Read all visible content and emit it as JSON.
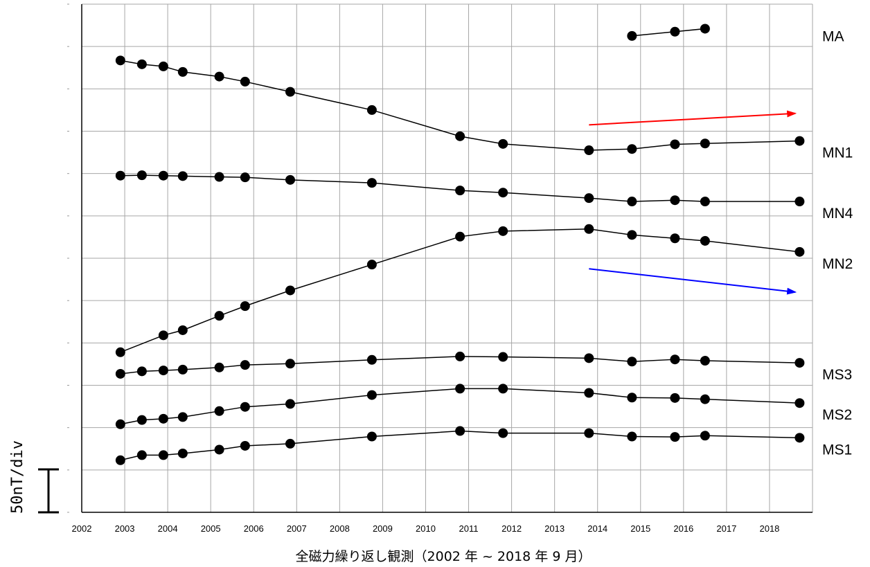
{
  "chart_data": {
    "type": "line",
    "xlabel": "全磁力繰り返し観測（2002 年 ~ 2018 年 9 月）",
    "ylabel": "",
    "xlim": [
      2002,
      2019
    ],
    "ylim": [
      0,
      12
    ],
    "x_ticks": [
      "2002",
      "2003",
      "2004",
      "2005",
      "2006",
      "2007",
      "2008",
      "2009",
      "2010",
      "2011",
      "2012",
      "2013",
      "2014",
      "2015",
      "2016",
      "2017",
      "2018"
    ],
    "y_grid_step": 1,
    "grid": true,
    "scale_label": "50nT/div",
    "series": [
      {
        "name": "MA",
        "x": [
          2014.8,
          2015.8,
          2016.5
        ],
        "y": [
          11.25,
          11.35,
          11.42
        ]
      },
      {
        "name": "MN1",
        "x": [
          2002.9,
          2003.4,
          2003.9,
          2004.35,
          2005.2,
          2005.8,
          2006.85,
          2008.75,
          2010.8,
          2011.8,
          2013.8,
          2014.8,
          2015.8,
          2016.5,
          2018.7
        ],
        "y": [
          10.67,
          10.58,
          10.53,
          10.4,
          10.29,
          10.17,
          9.93,
          9.5,
          8.88,
          8.7,
          8.55,
          8.58,
          8.69,
          8.71,
          8.77
        ]
      },
      {
        "name": "MN4",
        "x": [
          2002.9,
          2003.4,
          2003.9,
          2004.35,
          2005.2,
          2005.8,
          2006.85,
          2008.75,
          2010.8,
          2011.8,
          2013.8,
          2014.8,
          2015.8,
          2016.5,
          2018.7
        ],
        "y": [
          7.95,
          7.96,
          7.95,
          7.94,
          7.92,
          7.91,
          7.85,
          7.78,
          7.6,
          7.55,
          7.42,
          7.34,
          7.37,
          7.34,
          7.34
        ]
      },
      {
        "name": "MN2",
        "x": [
          2002.9,
          2003.9,
          2004.35,
          2005.2,
          2005.8,
          2006.85,
          2008.75,
          2010.8,
          2011.8,
          2013.8,
          2014.8,
          2015.8,
          2016.5,
          2018.7
        ],
        "y": [
          3.78,
          4.18,
          4.3,
          4.64,
          4.87,
          5.24,
          5.85,
          6.51,
          6.64,
          6.69,
          6.55,
          6.47,
          6.41,
          6.15
        ]
      },
      {
        "name": "MS3",
        "x": [
          2002.9,
          2003.4,
          2003.9,
          2004.35,
          2005.2,
          2005.8,
          2006.85,
          2008.75,
          2010.8,
          2011.8,
          2013.8,
          2014.8,
          2015.8,
          2016.5,
          2018.7
        ],
        "y": [
          3.27,
          3.33,
          3.35,
          3.37,
          3.42,
          3.48,
          3.51,
          3.6,
          3.68,
          3.67,
          3.64,
          3.56,
          3.61,
          3.58,
          3.53
        ]
      },
      {
        "name": "MS2",
        "x": [
          2002.9,
          2003.4,
          2003.9,
          2004.35,
          2005.2,
          2005.8,
          2006.85,
          2008.75,
          2010.8,
          2011.8,
          2013.8,
          2014.8,
          2015.8,
          2016.5,
          2018.7
        ],
        "y": [
          2.08,
          2.18,
          2.21,
          2.25,
          2.39,
          2.49,
          2.56,
          2.77,
          2.92,
          2.92,
          2.82,
          2.71,
          2.7,
          2.67,
          2.58
        ]
      },
      {
        "name": "MS1",
        "x": [
          2002.9,
          2003.4,
          2003.9,
          2004.35,
          2005.2,
          2005.8,
          2006.85,
          2008.75,
          2010.8,
          2011.8,
          2013.8,
          2014.8,
          2015.8,
          2016.5,
          2018.7
        ],
        "y": [
          1.23,
          1.35,
          1.35,
          1.39,
          1.48,
          1.57,
          1.62,
          1.79,
          1.92,
          1.87,
          1.87,
          1.79,
          1.78,
          1.81,
          1.76
        ]
      }
    ],
    "annotations": [
      {
        "type": "arrow",
        "color": "#ff0000",
        "from": [
          2013.8,
          9.15
        ],
        "to": [
          2018.6,
          9.42
        ]
      },
      {
        "type": "arrow",
        "color": "#0000ff",
        "from": [
          2013.8,
          5.75
        ],
        "to": [
          2018.6,
          5.2
        ]
      }
    ],
    "colors": {
      "line": "#000000",
      "grid": "#a6a6a6",
      "axis": "#000000"
    }
  }
}
